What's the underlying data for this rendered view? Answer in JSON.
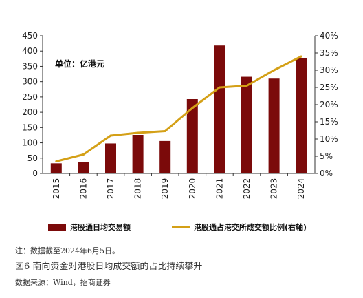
{
  "chart_data": {
    "type": "bar",
    "unit_label": "单位：亿港元",
    "categories": [
      "2015",
      "2016",
      "2017",
      "2018",
      "2019",
      "2020",
      "2021",
      "2022",
      "2023",
      "2024"
    ],
    "series": [
      {
        "name": "港股通日均交易额",
        "type": "bar",
        "axis": "left",
        "color": "#7b0a0a",
        "values": [
          33,
          37,
          98,
          126,
          106,
          243,
          418,
          316,
          310,
          376
        ]
      },
      {
        "name": "港股通占港交所成交额比例(右轴)",
        "type": "line",
        "axis": "right",
        "color": "#d4a017",
        "values": [
          3.5,
          5.5,
          11.0,
          11.8,
          12.3,
          19.0,
          25.0,
          25.5,
          30.0,
          34.0
        ]
      }
    ],
    "left_axis": {
      "ylim": [
        0,
        450
      ],
      "ticks": [
        "0",
        "50",
        "100",
        "150",
        "200",
        "250",
        "300",
        "350",
        "400",
        "450"
      ]
    },
    "right_axis": {
      "ylim": [
        0,
        40
      ],
      "ticks": [
        "0%",
        "5%",
        "10%",
        "15%",
        "20%",
        "25%",
        "30%",
        "35%",
        "40%"
      ]
    },
    "grid": false,
    "legend_position": "bottom"
  },
  "notes": {
    "footnote": "注：数据截至2024年6月5日。",
    "caption": "图6   南向资金对港股日均成交额的占比持续攀升",
    "source": "数据来源：Wind，招商证券"
  }
}
